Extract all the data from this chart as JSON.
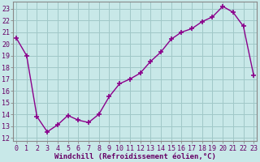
{
  "x_data": [
    0,
    1,
    2,
    3,
    4,
    5,
    6,
    7,
    8,
    9,
    10,
    11,
    12,
    13,
    14,
    15,
    16,
    17,
    18,
    19,
    20,
    21,
    22,
    23
  ],
  "y_data": [
    20.5,
    19.0,
    13.8,
    12.5,
    13.1,
    13.9,
    13.5,
    13.3,
    14.0,
    15.5,
    16.6,
    17.0,
    17.5,
    18.5,
    19.3,
    20.4,
    21.0,
    21.3,
    21.9,
    22.3,
    23.2,
    22.7,
    21.5,
    17.3
  ],
  "line_color": "#8B008B",
  "marker": "+",
  "marker_size": 4,
  "marker_lw": 1.2,
  "bg_color": "#c8e8e8",
  "grid_color": "#a0c8c8",
  "xlabel": "Windchill (Refroidissement éolien,°C)",
  "ylim_min": 11.7,
  "ylim_max": 23.6,
  "xlim_min": -0.3,
  "xlim_max": 23.3,
  "yticks": [
    12,
    13,
    14,
    15,
    16,
    17,
    18,
    19,
    20,
    21,
    22,
    23
  ],
  "xticks": [
    0,
    1,
    2,
    3,
    4,
    5,
    6,
    7,
    8,
    9,
    10,
    11,
    12,
    13,
    14,
    15,
    16,
    17,
    18,
    19,
    20,
    21,
    22,
    23
  ],
  "xlabel_fontsize": 6.5,
  "tick_fontsize": 6.0,
  "linewidth": 1.0
}
